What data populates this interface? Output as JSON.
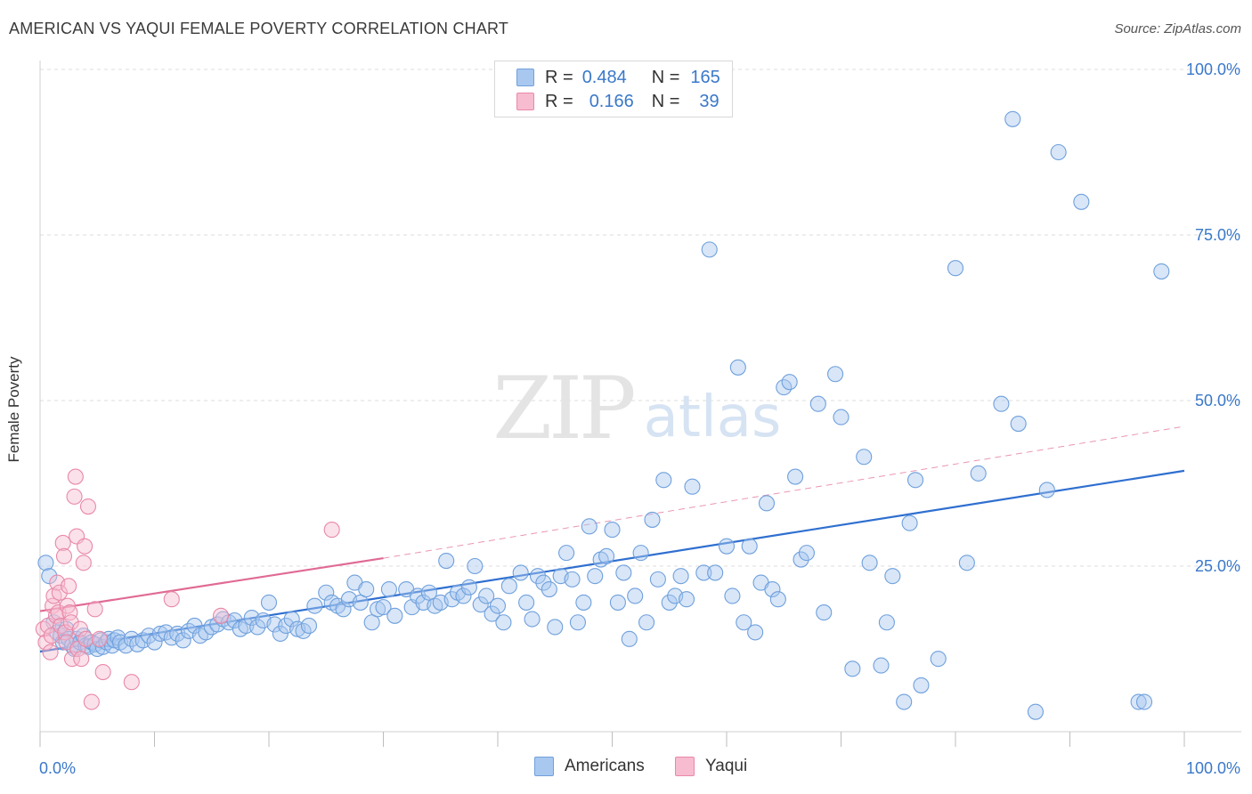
{
  "title": "AMERICAN VS YAQUI FEMALE POVERTY CORRELATION CHART",
  "source": "Source: ZipAtlas.com",
  "watermark": {
    "zip": "ZIP",
    "atlas": "atlas"
  },
  "legend_top": [
    {
      "r_label": "R =",
      "r_value": "0.484",
      "n_label": "N =",
      "n_value": "165",
      "color": "#a9c8f0",
      "border": "#6fa0dc"
    },
    {
      "r_label": "R =",
      "r_value": "0.166",
      "n_label": "N =",
      "n_value": "39",
      "color": "#f7bcd0",
      "border": "#e889a8"
    }
  ],
  "legend_bottom": [
    {
      "label": "Americans",
      "color": "#a9c8f0",
      "border": "#6fa0dc"
    },
    {
      "label": "Yaqui",
      "color": "#f7bcd0",
      "border": "#e889a8"
    }
  ],
  "chart_data": {
    "type": "scatter",
    "xlabel": "",
    "ylabel": "Female Poverty",
    "xlim": [
      0,
      100
    ],
    "ylim": [
      0,
      100
    ],
    "x_tick_labels": [
      "0.0%",
      "100.0%"
    ],
    "y_tick_labels": [
      "25.0%",
      "50.0%",
      "75.0%",
      "100.0%"
    ],
    "y_ticks": [
      25,
      50,
      75,
      100
    ],
    "grid": true,
    "series": [
      {
        "name": "Americans",
        "color": "#6fa0dc",
        "fill": "#a9c8f0",
        "trend": {
          "x": [
            0,
            100
          ],
          "y": [
            12.1,
            39.4
          ],
          "style": "solid",
          "color": "#2f6fd0"
        },
        "points": [
          [
            0.5,
            25.5
          ],
          [
            0.8,
            23.5
          ],
          [
            1.2,
            16.5
          ],
          [
            1.5,
            15.0
          ],
          [
            1.8,
            14.5
          ],
          [
            2.0,
            13.5
          ],
          [
            2.3,
            15.5
          ],
          [
            2.5,
            14.0
          ],
          [
            2.8,
            13.0
          ],
          [
            3.0,
            12.5
          ],
          [
            3.2,
            14.0
          ],
          [
            3.5,
            13.5
          ],
          [
            3.8,
            14.5
          ],
          [
            4.0,
            13.0
          ],
          [
            4.2,
            12.8
          ],
          [
            4.5,
            13.5
          ],
          [
            4.8,
            13.2
          ],
          [
            5.0,
            12.5
          ],
          [
            5.3,
            13.8
          ],
          [
            5.5,
            12.8
          ],
          [
            5.8,
            13.5
          ],
          [
            6.0,
            14.0
          ],
          [
            6.3,
            13.0
          ],
          [
            6.5,
            13.8
          ],
          [
            6.8,
            14.2
          ],
          [
            7.0,
            13.5
          ],
          [
            7.5,
            13.0
          ],
          [
            8.0,
            14.0
          ],
          [
            8.5,
            13.2
          ],
          [
            9.0,
            13.8
          ],
          [
            9.5,
            14.5
          ],
          [
            10.0,
            13.5
          ],
          [
            10.5,
            14.8
          ],
          [
            11.0,
            15.0
          ],
          [
            11.5,
            14.2
          ],
          [
            12.0,
            14.8
          ],
          [
            12.5,
            13.8
          ],
          [
            13.0,
            15.2
          ],
          [
            13.5,
            16.0
          ],
          [
            14.0,
            14.5
          ],
          [
            14.5,
            15.0
          ],
          [
            15.0,
            15.8
          ],
          [
            15.5,
            16.2
          ],
          [
            16.0,
            17.0
          ],
          [
            16.5,
            16.5
          ],
          [
            17.0,
            16.8
          ],
          [
            17.5,
            15.5
          ],
          [
            18.0,
            16.0
          ],
          [
            18.5,
            17.2
          ],
          [
            19.0,
            15.8
          ],
          [
            19.5,
            16.8
          ],
          [
            20.0,
            19.5
          ],
          [
            20.5,
            16.2
          ],
          [
            21.0,
            14.8
          ],
          [
            21.5,
            16.0
          ],
          [
            22.0,
            17.0
          ],
          [
            22.5,
            15.5
          ],
          [
            23.0,
            15.2
          ],
          [
            23.5,
            16.0
          ],
          [
            24.0,
            19.0
          ],
          [
            25.0,
            21.0
          ],
          [
            25.5,
            19.5
          ],
          [
            26.0,
            19.0
          ],
          [
            26.5,
            18.5
          ],
          [
            27.0,
            20.0
          ],
          [
            27.5,
            22.5
          ],
          [
            28.0,
            19.5
          ],
          [
            28.5,
            21.5
          ],
          [
            29.0,
            16.5
          ],
          [
            29.5,
            18.5
          ],
          [
            30.0,
            18.8
          ],
          [
            30.5,
            21.5
          ],
          [
            31.0,
            17.5
          ],
          [
            32.0,
            21.5
          ],
          [
            32.5,
            18.8
          ],
          [
            33.0,
            20.5
          ],
          [
            33.5,
            19.5
          ],
          [
            34.0,
            21.0
          ],
          [
            34.5,
            19.0
          ],
          [
            35.0,
            19.5
          ],
          [
            35.5,
            25.8
          ],
          [
            36.0,
            20.0
          ],
          [
            36.5,
            21.0
          ],
          [
            37.0,
            20.5
          ],
          [
            37.5,
            21.8
          ],
          [
            38.0,
            25.0
          ],
          [
            38.5,
            19.2
          ],
          [
            39.0,
            20.5
          ],
          [
            39.5,
            17.8
          ],
          [
            40.0,
            19.0
          ],
          [
            40.5,
            16.5
          ],
          [
            41.0,
            22.0
          ],
          [
            42.0,
            24.0
          ],
          [
            42.5,
            19.5
          ],
          [
            43.0,
            17.0
          ],
          [
            43.5,
            23.5
          ],
          [
            44.0,
            22.5
          ],
          [
            44.5,
            21.5
          ],
          [
            45.0,
            15.8
          ],
          [
            45.5,
            23.5
          ],
          [
            46.0,
            27.0
          ],
          [
            46.5,
            23.0
          ],
          [
            47.0,
            16.5
          ],
          [
            47.5,
            19.5
          ],
          [
            48.0,
            31.0
          ],
          [
            48.5,
            23.5
          ],
          [
            49.0,
            26.0
          ],
          [
            49.5,
            26.5
          ],
          [
            50.0,
            30.5
          ],
          [
            50.5,
            19.5
          ],
          [
            51.0,
            24.0
          ],
          [
            51.5,
            14.0
          ],
          [
            52.0,
            20.5
          ],
          [
            52.5,
            27.0
          ],
          [
            53.0,
            16.5
          ],
          [
            53.5,
            32.0
          ],
          [
            54.0,
            23.0
          ],
          [
            54.5,
            38.0
          ],
          [
            55.0,
            19.5
          ],
          [
            55.5,
            20.5
          ],
          [
            56.0,
            23.5
          ],
          [
            56.5,
            20.0
          ],
          [
            57.0,
            37.0
          ],
          [
            58.0,
            24.0
          ],
          [
            58.5,
            72.8
          ],
          [
            59.0,
            24.0
          ],
          [
            60.0,
            28.0
          ],
          [
            60.5,
            20.5
          ],
          [
            61.0,
            55.0
          ],
          [
            61.5,
            16.5
          ],
          [
            62.0,
            28.0
          ],
          [
            62.5,
            15.0
          ],
          [
            63.0,
            22.5
          ],
          [
            63.5,
            34.5
          ],
          [
            64.0,
            21.5
          ],
          [
            64.5,
            20.0
          ],
          [
            65.0,
            52.0
          ],
          [
            65.5,
            52.8
          ],
          [
            66.0,
            38.5
          ],
          [
            66.5,
            26.0
          ],
          [
            67.0,
            27.0
          ],
          [
            68.0,
            49.5
          ],
          [
            68.5,
            18.0
          ],
          [
            69.5,
            54.0
          ],
          [
            70.0,
            47.5
          ],
          [
            71.0,
            9.5
          ],
          [
            72.0,
            41.5
          ],
          [
            72.5,
            25.5
          ],
          [
            73.5,
            10.0
          ],
          [
            74.0,
            16.5
          ],
          [
            74.5,
            23.5
          ],
          [
            75.5,
            4.5
          ],
          [
            76.0,
            31.5
          ],
          [
            76.5,
            38.0
          ],
          [
            77.0,
            7.0
          ],
          [
            78.5,
            11.0
          ],
          [
            80.0,
            70.0
          ],
          [
            81.0,
            25.5
          ],
          [
            82.0,
            39.0
          ],
          [
            84.0,
            49.5
          ],
          [
            85.0,
            92.5
          ],
          [
            85.5,
            46.5
          ],
          [
            87.0,
            3.0
          ],
          [
            88.0,
            36.5
          ],
          [
            89.0,
            87.5
          ],
          [
            91.0,
            80.0
          ],
          [
            96.0,
            4.5
          ],
          [
            96.5,
            4.5
          ],
          [
            98.0,
            69.5
          ]
        ]
      },
      {
        "name": "Yaqui",
        "color": "#e889a8",
        "fill": "#f7bcd0",
        "trend": {
          "x": [
            0,
            30
          ],
          "y": [
            18.2,
            26.2
          ],
          "style": "solid",
          "color": "#e06a94",
          "extension": {
            "x": [
              30,
              100
            ],
            "y": [
              26.2,
              46.1
            ],
            "style": "dashed"
          }
        },
        "points": [
          [
            0.3,
            15.5
          ],
          [
            0.5,
            13.5
          ],
          [
            0.7,
            16.0
          ],
          [
            0.9,
            12.0
          ],
          [
            1.0,
            14.5
          ],
          [
            1.1,
            19.0
          ],
          [
            1.2,
            20.5
          ],
          [
            1.4,
            17.5
          ],
          [
            1.5,
            22.5
          ],
          [
            1.6,
            18.0
          ],
          [
            1.7,
            21.0
          ],
          [
            1.8,
            16.0
          ],
          [
            2.0,
            28.5
          ],
          [
            2.1,
            26.5
          ],
          [
            2.2,
            15.0
          ],
          [
            2.3,
            13.5
          ],
          [
            2.4,
            19.0
          ],
          [
            2.5,
            22.0
          ],
          [
            2.6,
            18.0
          ],
          [
            2.7,
            16.5
          ],
          [
            2.8,
            11.0
          ],
          [
            3.0,
            35.5
          ],
          [
            3.1,
            38.5
          ],
          [
            3.2,
            29.5
          ],
          [
            3.3,
            12.5
          ],
          [
            3.5,
            15.5
          ],
          [
            3.6,
            11.0
          ],
          [
            3.8,
            25.5
          ],
          [
            3.9,
            28.0
          ],
          [
            4.0,
            14.0
          ],
          [
            4.2,
            34.0
          ],
          [
            4.5,
            4.5
          ],
          [
            4.8,
            18.5
          ],
          [
            5.2,
            14.0
          ],
          [
            5.5,
            9.0
          ],
          [
            8.0,
            7.5
          ],
          [
            11.5,
            20.0
          ],
          [
            15.8,
            17.5
          ],
          [
            25.5,
            30.5
          ]
        ]
      }
    ]
  }
}
